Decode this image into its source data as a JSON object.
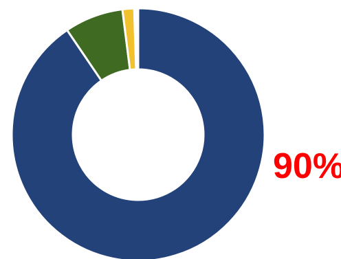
{
  "chart_data": {
    "type": "pie",
    "variant": "donut",
    "title": "",
    "slices": [
      {
        "value": 90.5,
        "color": "#23427a"
      },
      {
        "value": 7.5,
        "color": "#3f6a22"
      },
      {
        "value": 1.5,
        "color": "#f2c12e"
      },
      {
        "value": 0.5,
        "color": "#ffffff"
      }
    ],
    "start_angle_deg": 0,
    "direction": "clockwise",
    "legend": "none",
    "annotation": {
      "text": "90%",
      "color": "#ff0000"
    }
  }
}
